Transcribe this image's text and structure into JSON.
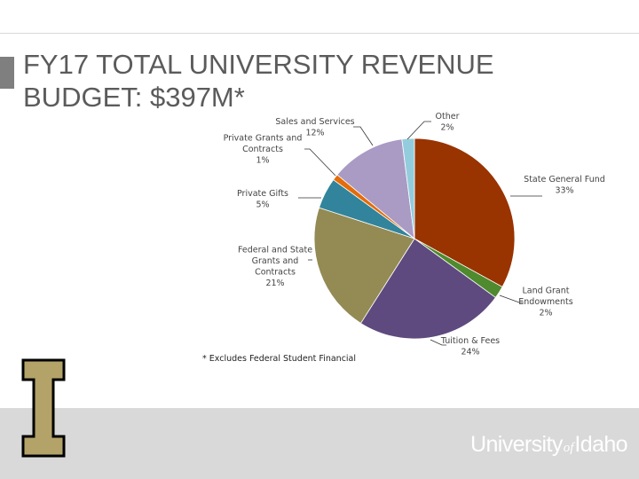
{
  "slide": {
    "title_line1": "FY17 TOTAL UNIVERSITY REVENUE",
    "title_line2": "BUDGET: $397M*",
    "footnote": "* Excludes Federal Student Financial",
    "logo_letter": "I",
    "wordmark_university": "University",
    "wordmark_of": "of",
    "wordmark_idaho": "Idaho"
  },
  "colors": {
    "title": "#5b5b5b",
    "footer_band": "#d9d9d9",
    "logo_gold": "#b3a369",
    "logo_outline": "#000000"
  },
  "chart_data": {
    "type": "pie",
    "start_angle_deg": 0,
    "direction": "clockwise",
    "slices": [
      {
        "label_lines": [
          "State General Fund"
        ],
        "percent_label": "33%",
        "value": 33,
        "color": "#993300"
      },
      {
        "label_lines": [
          "Land Grant",
          "Endowments"
        ],
        "percent_label": "2%",
        "value": 2,
        "color": "#4f8a2e"
      },
      {
        "label_lines": [
          "Tuition & Fees"
        ],
        "percent_label": "24%",
        "value": 24,
        "color": "#5e4a7e"
      },
      {
        "label_lines": [
          "Federal and State",
          "Grants and",
          "Contracts"
        ],
        "percent_label": "21%",
        "value": 21,
        "color": "#948a54"
      },
      {
        "label_lines": [
          "Private Gifts"
        ],
        "percent_label": "5%",
        "value": 5,
        "color": "#31849b"
      },
      {
        "label_lines": [
          "Private Grants and",
          "Contracts"
        ],
        "percent_label": "1%",
        "value": 1,
        "color": "#e46c0a"
      },
      {
        "label_lines": [
          "Sales and Services"
        ],
        "percent_label": "12%",
        "value": 12,
        "color": "#a99bc4"
      },
      {
        "label_lines": [
          "Other"
        ],
        "percent_label": "2%",
        "value": 2,
        "color": "#93cddd"
      }
    ]
  }
}
